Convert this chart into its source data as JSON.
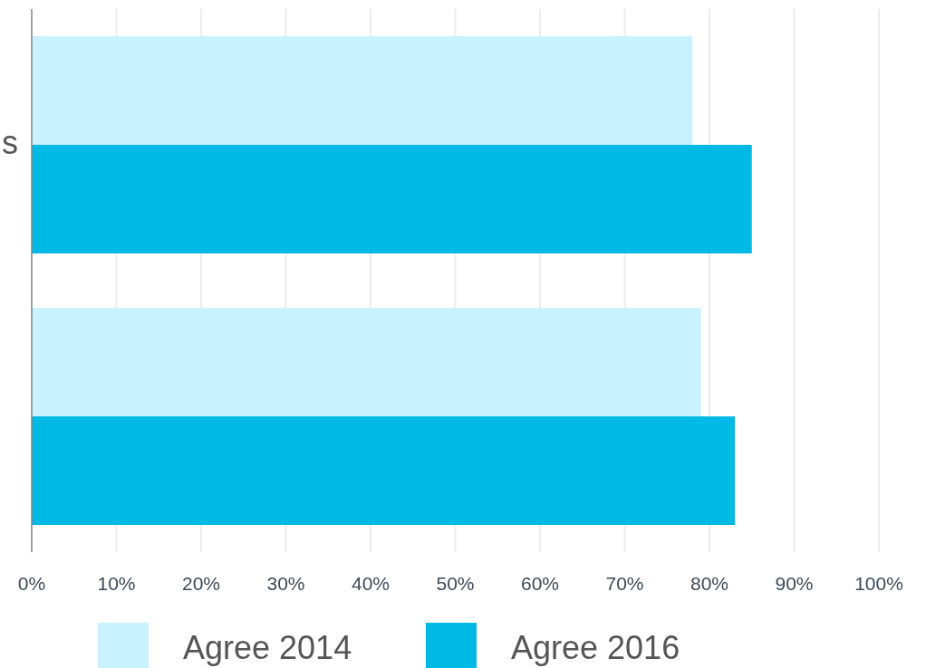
{
  "chart_data": {
    "type": "bar",
    "orientation": "horizontal",
    "categories": [
      "s",
      null
    ],
    "series": [
      {
        "name": "Agree 2014",
        "color": "#c8f2fe",
        "values": [
          78,
          79
        ]
      },
      {
        "name": "Agree 2016",
        "color": "#00b9e5",
        "values": [
          85,
          83
        ]
      }
    ],
    "xlim": [
      0,
      100
    ],
    "xticks": [
      {
        "value": 0,
        "label": "0%"
      },
      {
        "value": 10,
        "label": "10%"
      },
      {
        "value": 20,
        "label": "20%"
      },
      {
        "value": 30,
        "label": "30%"
      },
      {
        "value": 40,
        "label": "40%"
      },
      {
        "value": 50,
        "label": "50%"
      },
      {
        "value": 60,
        "label": "60%"
      },
      {
        "value": 70,
        "label": "70%"
      },
      {
        "value": 80,
        "label": "80%"
      },
      {
        "value": 90,
        "label": "90%"
      },
      {
        "value": 100,
        "label": "100%"
      }
    ],
    "grid": "x",
    "legend": "bottom"
  }
}
